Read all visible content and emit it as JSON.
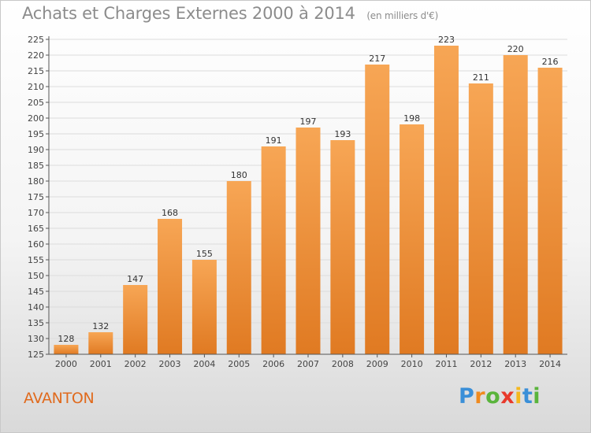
{
  "header": {
    "title": "Achats et Charges Externes 2000 à 2014",
    "subtitle": "(en milliers d'€)"
  },
  "footer": {
    "commune": "AVANTON",
    "logo": "Proxiti",
    "logo_letters": [
      "P",
      "r",
      "o",
      "x",
      "i",
      "t",
      "i"
    ],
    "logo_colors": [
      "#3a8fd8",
      "#f08a1e",
      "#5ab43c",
      "#e8392b",
      "#f5b81e",
      "#3a8fd8",
      "#5ab43c"
    ]
  },
  "chart_data": {
    "type": "bar",
    "categories": [
      "2000",
      "2001",
      "2002",
      "2003",
      "2004",
      "2005",
      "2006",
      "2007",
      "2008",
      "2009",
      "2010",
      "2011",
      "2012",
      "2013",
      "2014"
    ],
    "values": [
      128,
      132,
      147,
      168,
      155,
      180,
      191,
      197,
      193,
      217,
      198,
      223,
      211,
      220,
      216
    ],
    "ylim": [
      125,
      225
    ],
    "yticks": [
      125,
      130,
      135,
      140,
      145,
      150,
      155,
      160,
      165,
      170,
      175,
      180,
      185,
      190,
      195,
      200,
      205,
      210,
      215,
      220,
      225
    ],
    "grid": true,
    "bar_color_top": "#f7a655",
    "bar_color_bottom": "#e07a22",
    "grid_color": "#dcdcdc",
    "axis_color": "#555555"
  }
}
